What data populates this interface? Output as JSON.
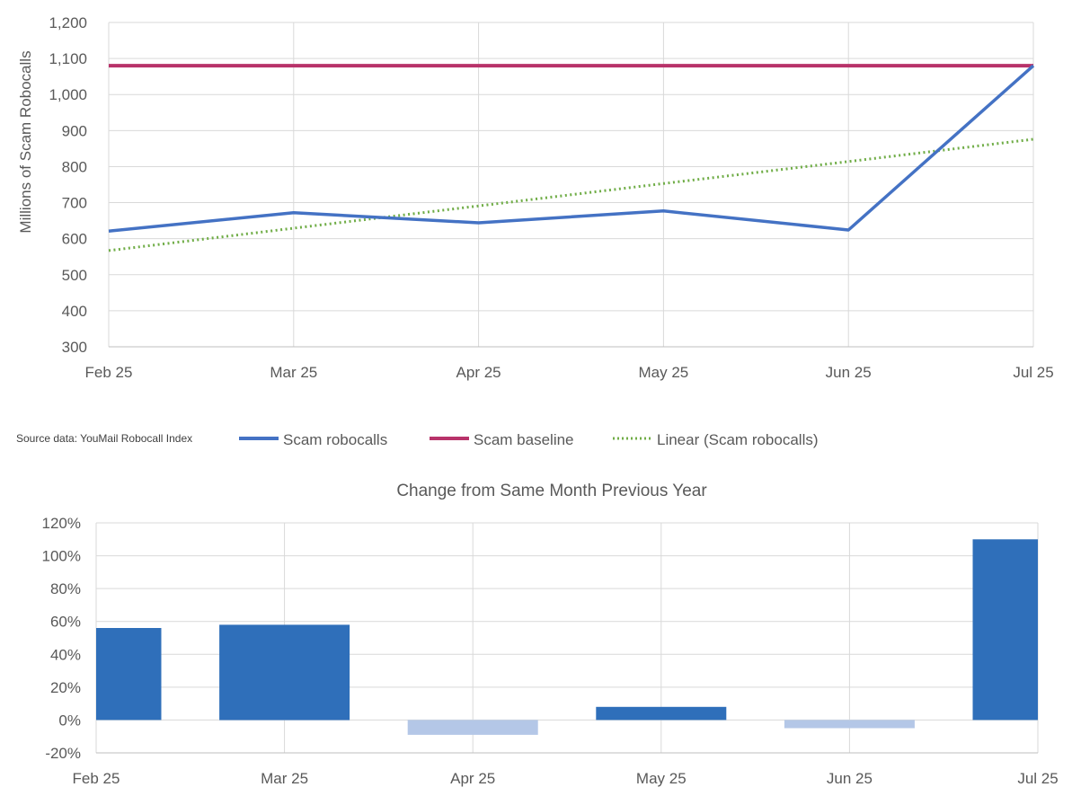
{
  "source_note": "Source data: YouMail Robocall Index",
  "colors": {
    "scam": "#4472c4",
    "baseline": "#b8336a",
    "trend": "#70ad47",
    "bar_positive": "#2f6fba",
    "bar_negative": "#b4c7e7",
    "grid": "#d9d9d9",
    "axis": "#bfbfbf"
  },
  "chart_data": [
    {
      "type": "line",
      "categories": [
        "Feb 25",
        "Mar 25",
        "Apr 25",
        "May 25",
        "Jun 25",
        "Jul 25"
      ],
      "ylabel": "Millions of Scam Robocalls",
      "ylim": [
        300,
        1200
      ],
      "yticks": [
        "300",
        "400",
        "500",
        "600",
        "700",
        "800",
        "900",
        "1,000",
        "1,100",
        "1,200"
      ],
      "grid": true,
      "legend_position": "bottom",
      "series": [
        {
          "name": "Scam robocalls",
          "style": "solid",
          "values": [
            621,
            672,
            644,
            677,
            624,
            1080
          ]
        },
        {
          "name": "Scam baseline",
          "style": "solid",
          "values": [
            1080,
            1080,
            1080,
            1080,
            1080,
            1080
          ]
        },
        {
          "name": "Linear (Scam robocalls)",
          "style": "dotted",
          "values": [
            567,
            629,
            691,
            753,
            814,
            876
          ]
        }
      ]
    },
    {
      "type": "bar",
      "title": "Change from Same Month Previous Year",
      "categories": [
        "Feb 25",
        "Mar 25",
        "Apr 25",
        "May 25",
        "Jun 25",
        "Jul 25"
      ],
      "values": [
        56,
        58,
        -9,
        8,
        -5,
        110
      ],
      "ylim": [
        -20,
        120
      ],
      "yticks": [
        "-20%",
        "0%",
        "20%",
        "40%",
        "60%",
        "80%",
        "100%",
        "120%"
      ],
      "grid": true
    }
  ]
}
